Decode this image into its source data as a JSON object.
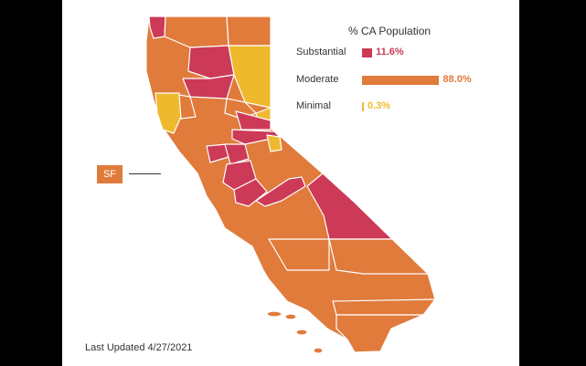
{
  "legend": {
    "title": "% CA Population",
    "items": [
      {
        "label": "Substantial",
        "percent": 11.6,
        "percent_text": "11.6%",
        "color": "#cc3a57"
      },
      {
        "label": "Moderate",
        "percent": 88.0,
        "percent_text": "88.0%",
        "color": "#e07b3c"
      },
      {
        "label": "Minimal",
        "percent": 0.3,
        "percent_text": "0.3%",
        "color": "#efb92e"
      }
    ]
  },
  "callout": {
    "label": "SF"
  },
  "footer": {
    "updated": "Last Updated 4/27/2021"
  },
  "tier_colors": {
    "substantial": "#cc3a57",
    "moderate": "#e07b3c",
    "minimal": "#efb92e"
  }
}
